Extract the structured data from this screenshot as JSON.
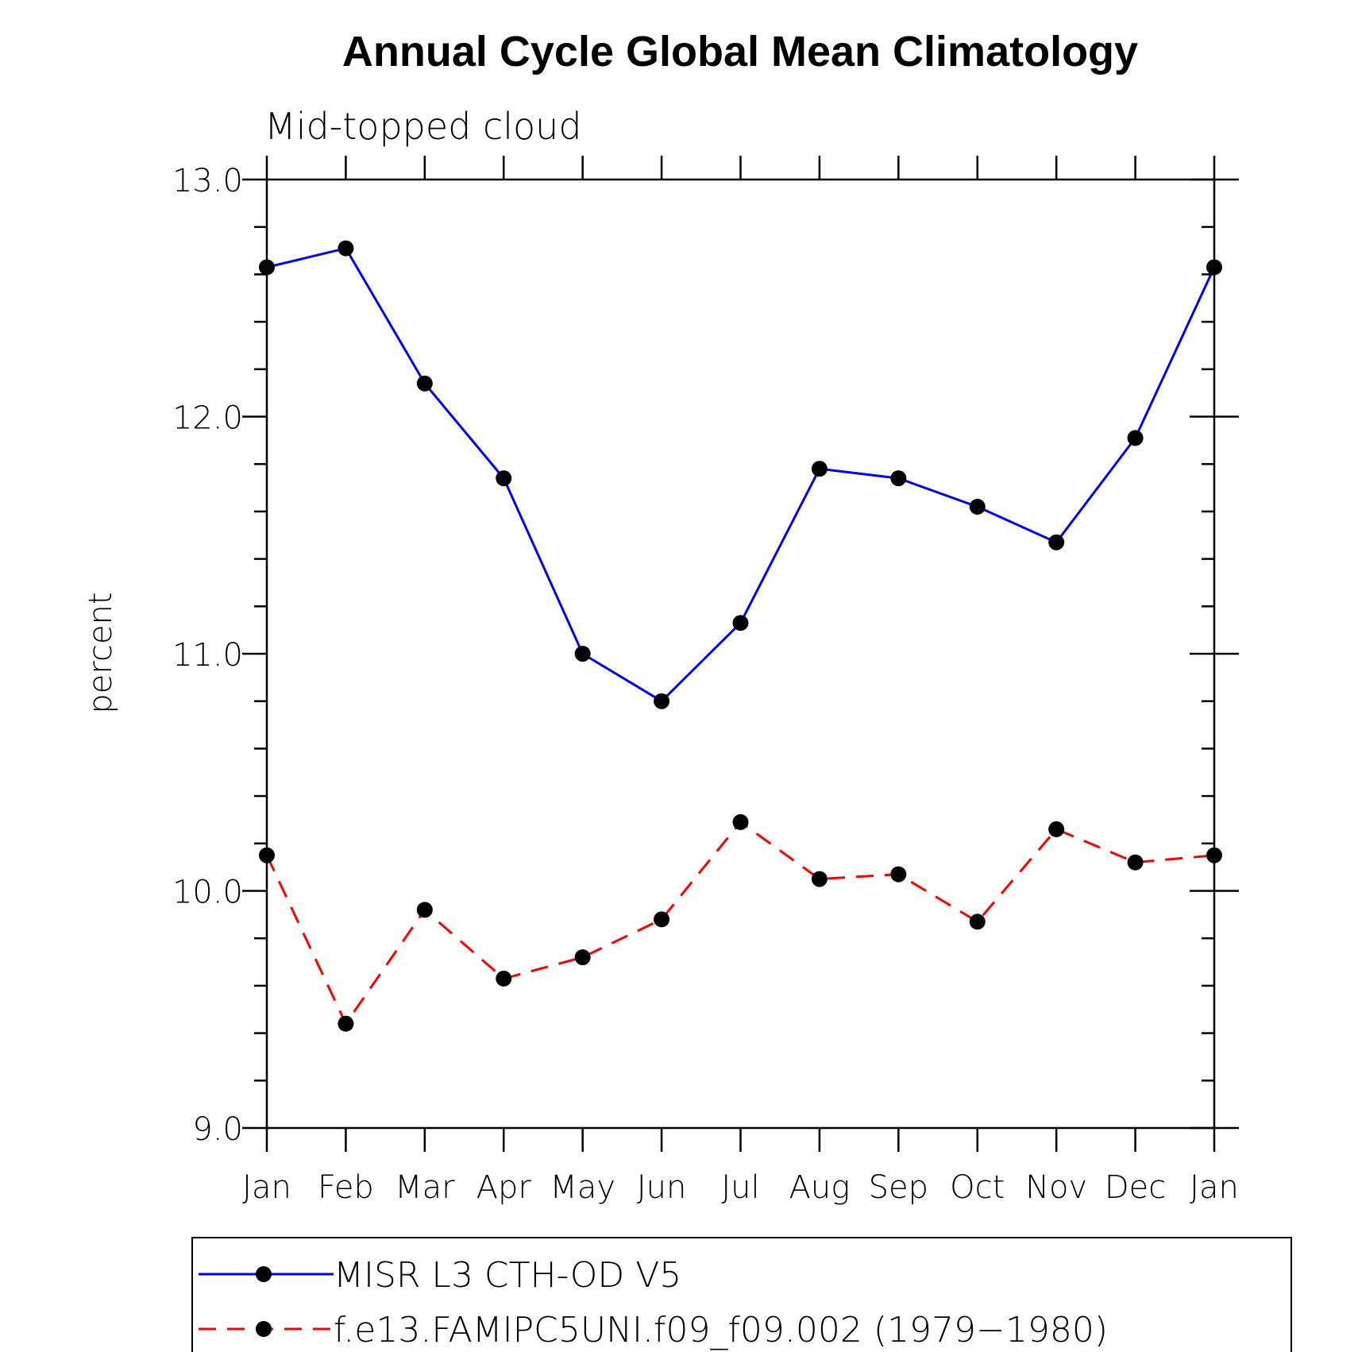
{
  "chart_data": {
    "type": "line",
    "title": "Annual Cycle Global Mean Climatology",
    "subtitle": "Mid-topped cloud",
    "xlabel": "",
    "ylabel": "percent",
    "categories": [
      "Jan",
      "Feb",
      "Mar",
      "Apr",
      "May",
      "Jun",
      "Jul",
      "Aug",
      "Sep",
      "Oct",
      "Nov",
      "Dec",
      "Jan"
    ],
    "ylim": [
      9.0,
      13.0
    ],
    "yticks": [
      9.0,
      10.0,
      11.0,
      12.0,
      13.0
    ],
    "ytick_labels": [
      "9.0",
      "10.0",
      "11.0",
      "12.0",
      "13.0"
    ],
    "minor_ytick_step": 0.2,
    "grid": false,
    "legend_position": "bottom",
    "series": [
      {
        "name": "MISR L3 CTH-OD V5",
        "color": "#0000ff",
        "dash": "solid",
        "marker": "filled-circle",
        "values": [
          12.63,
          12.71,
          12.14,
          11.74,
          11.0,
          10.8,
          11.13,
          11.78,
          11.74,
          11.62,
          11.47,
          11.91,
          12.63
        ]
      },
      {
        "name": "f.e13.FAMIPC5UNI.f09_f09.002 (1979−1980)",
        "color": "#ff0000",
        "dash": "dashed",
        "marker": "filled-circle",
        "values": [
          10.15,
          9.44,
          9.92,
          9.63,
          9.72,
          9.88,
          10.29,
          10.05,
          10.07,
          9.87,
          10.26,
          10.12,
          10.15
        ]
      }
    ]
  }
}
